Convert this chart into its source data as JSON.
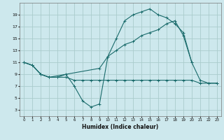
{
  "xlabel": "Humidex (Indice chaleur)",
  "xlim": [
    -0.5,
    23.5
  ],
  "ylim": [
    2,
    21
  ],
  "yticks": [
    3,
    5,
    7,
    9,
    11,
    13,
    15,
    17,
    19
  ],
  "xticks": [
    0,
    1,
    2,
    3,
    4,
    5,
    6,
    7,
    8,
    9,
    10,
    11,
    12,
    13,
    14,
    15,
    16,
    17,
    18,
    19,
    20,
    21,
    22,
    23
  ],
  "bg_color": "#cde8ed",
  "grid_color": "#aacccc",
  "line_color": "#1a6b6b",
  "line1_x": [
    0,
    1,
    2,
    3,
    4,
    5,
    6,
    7,
    8,
    9,
    10,
    11,
    12,
    13,
    14,
    15,
    16,
    17,
    18,
    19,
    20,
    21,
    22,
    23
  ],
  "line1_y": [
    11,
    10.5,
    9,
    8.5,
    8.5,
    9,
    7,
    4.5,
    3.5,
    4,
    12,
    15,
    18,
    19,
    19.5,
    20,
    19,
    18.5,
    17.5,
    16,
    11,
    8,
    7.5,
    7.5
  ],
  "line2_x": [
    0,
    1,
    2,
    3,
    9,
    10,
    11,
    12,
    13,
    14,
    15,
    16,
    17,
    18,
    19,
    20
  ],
  "line2_y": [
    11,
    10.5,
    9,
    8.5,
    10,
    12,
    13,
    14,
    14.5,
    15.5,
    16,
    16.5,
    17.5,
    18,
    15.5,
    11
  ],
  "line3_x": [
    0,
    1,
    2,
    3,
    4,
    5,
    6,
    7,
    8,
    9,
    10,
    11,
    12,
    13,
    14,
    15,
    16,
    17,
    18,
    19,
    20,
    21,
    22,
    23
  ],
  "line3_y": [
    11,
    10.5,
    9,
    8.5,
    8.5,
    8.5,
    8,
    8,
    8,
    8,
    8,
    8,
    8,
    8,
    8,
    8,
    8,
    8,
    8,
    8,
    8,
    7.5,
    7.5,
    7.5
  ]
}
